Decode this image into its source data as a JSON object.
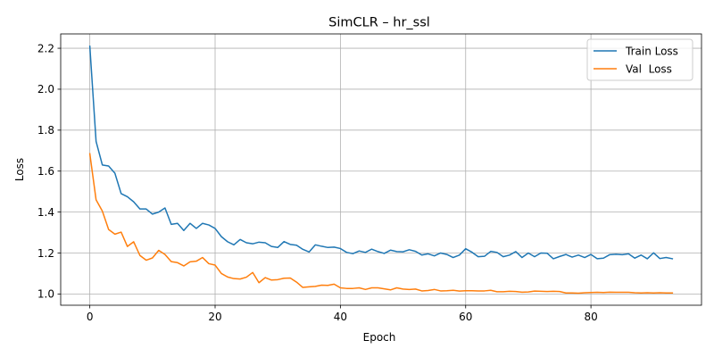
{
  "chart_data": {
    "type": "line",
    "title": "SimCLR – hr_ssl",
    "xlabel": "Epoch",
    "ylabel": "Loss",
    "xlim": [
      -4.65,
      97.65
    ],
    "ylim": [
      0.945,
      2.27
    ],
    "xticks": [
      0,
      20,
      40,
      60,
      80
    ],
    "yticks": [
      1.0,
      1.2,
      1.4,
      1.6,
      1.8,
      2.0,
      2.2
    ],
    "grid": true,
    "legend_position": "top-right",
    "series": [
      {
        "name": "Train Loss",
        "color": "#1f77b4",
        "values": [
          2.21,
          1.745,
          1.63,
          1.625,
          1.59,
          1.49,
          1.475,
          1.45,
          1.415,
          1.415,
          1.39,
          1.4,
          1.42,
          1.34,
          1.345,
          1.31,
          1.345,
          1.32,
          1.345,
          1.337,
          1.32,
          1.28,
          1.255,
          1.24,
          1.266,
          1.25,
          1.245,
          1.253,
          1.25,
          1.232,
          1.227,
          1.256,
          1.242,
          1.238,
          1.218,
          1.205,
          1.24,
          1.233,
          1.227,
          1.229,
          1.222,
          1.203,
          1.197,
          1.21,
          1.203,
          1.219,
          1.207,
          1.198,
          1.214,
          1.207,
          1.206,
          1.216,
          1.208,
          1.19,
          1.196,
          1.186,
          1.2,
          1.193,
          1.178,
          1.19,
          1.221,
          1.204,
          1.182,
          1.184,
          1.208,
          1.203,
          1.182,
          1.19,
          1.207,
          1.178,
          1.2,
          1.182,
          1.2,
          1.199,
          1.172,
          1.183,
          1.193,
          1.18,
          1.19,
          1.178,
          1.193,
          1.172,
          1.175,
          1.192,
          1.194,
          1.192,
          1.196,
          1.175,
          1.19,
          1.172,
          1.201,
          1.173,
          1.178,
          1.172
        ]
      },
      {
        "name": "Val  Loss",
        "color": "#ff7f0e",
        "values": [
          1.685,
          1.46,
          1.405,
          1.315,
          1.292,
          1.302,
          1.232,
          1.255,
          1.188,
          1.165,
          1.176,
          1.213,
          1.193,
          1.158,
          1.153,
          1.137,
          1.157,
          1.16,
          1.178,
          1.148,
          1.141,
          1.1,
          1.083,
          1.075,
          1.073,
          1.082,
          1.105,
          1.055,
          1.08,
          1.068,
          1.07,
          1.077,
          1.078,
          1.058,
          1.032,
          1.035,
          1.037,
          1.043,
          1.042,
          1.048,
          1.03,
          1.027,
          1.027,
          1.03,
          1.022,
          1.03,
          1.03,
          1.025,
          1.02,
          1.03,
          1.024,
          1.022,
          1.024,
          1.015,
          1.017,
          1.022,
          1.015,
          1.016,
          1.018,
          1.014,
          1.016,
          1.016,
          1.015,
          1.015,
          1.018,
          1.011,
          1.011,
          1.013,
          1.012,
          1.009,
          1.01,
          1.014,
          1.013,
          1.012,
          1.013,
          1.012,
          1.005,
          1.005,
          1.004,
          1.006,
          1.007,
          1.008,
          1.007,
          1.009,
          1.008,
          1.008,
          1.008,
          1.006,
          1.005,
          1.006,
          1.005,
          1.006,
          1.005,
          1.005
        ]
      }
    ]
  }
}
